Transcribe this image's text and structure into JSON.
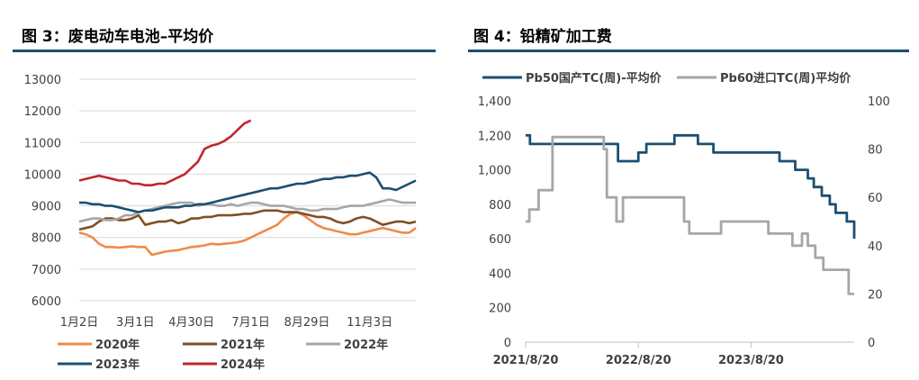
{
  "charts": [
    {
      "title": "图 3：废电动车电池–平均价",
      "chart_data": {
        "type": "line",
        "title": "图 3：废电动车电池–平均价",
        "xlabel": "",
        "ylabel": "",
        "ylim": [
          6000,
          13000
        ],
        "yticks": [
          6000,
          7000,
          8000,
          9000,
          10000,
          11000,
          12000,
          13000
        ],
        "x_unit": "week",
        "x_range": [
          1,
          52
        ],
        "xticks": [
          {
            "x": 1,
            "label": "1月2日"
          },
          {
            "x": 9.5,
            "label": "3月1日"
          },
          {
            "x": 18,
            "label": "4月30日"
          },
          {
            "x": 27,
            "label": "7月1日"
          },
          {
            "x": 35.5,
            "label": "8月29日"
          },
          {
            "x": 45,
            "label": "11月3日"
          }
        ],
        "grid": true,
        "legend_position": "bottom",
        "series": [
          {
            "name": "2020年",
            "color": "#F08A4B",
            "x": [
              1,
              2,
              3,
              4,
              5,
              6,
              7,
              8,
              9,
              10,
              11,
              12,
              13,
              14,
              15,
              16,
              17,
              18,
              19,
              20,
              21,
              22,
              23,
              24,
              25,
              26,
              27,
              28,
              29,
              30,
              31,
              32,
              33,
              34,
              35,
              36,
              37,
              38,
              39,
              40,
              41,
              42,
              43,
              44,
              45,
              46,
              47,
              48,
              49,
              50,
              51,
              52
            ],
            "values": [
              8150,
              8100,
              8000,
              7800,
              7700,
              7700,
              7680,
              7700,
              7720,
              7700,
              7700,
              7450,
              7500,
              7550,
              7580,
              7600,
              7650,
              7700,
              7720,
              7750,
              7800,
              7780,
              7800,
              7820,
              7850,
              7900,
              8000,
              8100,
              8200,
              8300,
              8400,
              8600,
              8750,
              8800,
              8700,
              8550,
              8400,
              8300,
              8250,
              8200,
              8150,
              8100,
              8100,
              8150,
              8200,
              8250,
              8300,
              8250,
              8200,
              8150,
              8150,
              8300
            ]
          },
          {
            "name": "2021年",
            "color": "#7F4F24",
            "x": [
              1,
              2,
              3,
              4,
              5,
              6,
              7,
              8,
              9,
              10,
              11,
              12,
              13,
              14,
              15,
              16,
              17,
              18,
              19,
              20,
              21,
              22,
              23,
              24,
              25,
              26,
              27,
              28,
              29,
              30,
              31,
              32,
              33,
              34,
              35,
              36,
              37,
              38,
              39,
              40,
              41,
              42,
              43,
              44,
              45,
              46,
              47,
              48,
              49,
              50,
              51,
              52
            ],
            "values": [
              8250,
              8300,
              8350,
              8500,
              8600,
              8600,
              8550,
              8550,
              8600,
              8700,
              8400,
              8450,
              8500,
              8500,
              8550,
              8450,
              8500,
              8600,
              8600,
              8650,
              8650,
              8700,
              8700,
              8700,
              8720,
              8750,
              8750,
              8800,
              8850,
              8850,
              8850,
              8800,
              8800,
              8800,
              8750,
              8700,
              8650,
              8650,
              8600,
              8500,
              8450,
              8500,
              8600,
              8650,
              8600,
              8500,
              8400,
              8450,
              8500,
              8500,
              8450,
              8500
            ]
          },
          {
            "name": "2022年",
            "color": "#A6A6A6",
            "x": [
              1,
              2,
              3,
              4,
              5,
              6,
              7,
              8,
              9,
              10,
              11,
              12,
              13,
              14,
              15,
              16,
              17,
              18,
              19,
              20,
              21,
              22,
              23,
              24,
              25,
              26,
              27,
              28,
              29,
              30,
              31,
              32,
              33,
              34,
              35,
              36,
              37,
              38,
              39,
              40,
              41,
              42,
              43,
              44,
              45,
              46,
              47,
              48,
              49,
              50,
              51,
              52
            ],
            "values": [
              8500,
              8550,
              8600,
              8600,
              8550,
              8550,
              8600,
              8700,
              8700,
              8800,
              8850,
              8900,
              8950,
              9000,
              9050,
              9100,
              9100,
              9100,
              9000,
              9050,
              9050,
              9000,
              9000,
              9050,
              9000,
              9050,
              9100,
              9100,
              9050,
              9000,
              9000,
              9000,
              8950,
              8900,
              8900,
              8850,
              8850,
              8900,
              8900,
              8900,
              8950,
              9000,
              9000,
              9000,
              9050,
              9100,
              9150,
              9200,
              9150,
              9100,
              9100,
              9100
            ]
          },
          {
            "name": "2023年",
            "color": "#1B4F72",
            "x": [
              1,
              2,
              3,
              4,
              5,
              6,
              7,
              8,
              9,
              10,
              11,
              12,
              13,
              14,
              15,
              16,
              17,
              18,
              19,
              20,
              21,
              22,
              23,
              24,
              25,
              26,
              27,
              28,
              29,
              30,
              31,
              32,
              33,
              34,
              35,
              36,
              37,
              38,
              39,
              40,
              41,
              42,
              43,
              44,
              45,
              46,
              47,
              48,
              49,
              50,
              51,
              52
            ],
            "values": [
              9100,
              9100,
              9050,
              9050,
              9000,
              9000,
              8950,
              8900,
              8850,
              8800,
              8850,
              8850,
              8900,
              8950,
              8950,
              8950,
              9000,
              9000,
              9050,
              9050,
              9100,
              9150,
              9200,
              9250,
              9300,
              9350,
              9400,
              9450,
              9500,
              9550,
              9550,
              9600,
              9650,
              9700,
              9700,
              9750,
              9800,
              9850,
              9850,
              9900,
              9900,
              9950,
              9950,
              10000,
              10050,
              9900,
              9550,
              9550,
              9500,
              9600,
              9700,
              9800
            ]
          },
          {
            "name": "2024年",
            "color": "#C0262D",
            "x": [
              1,
              2,
              3,
              4,
              5,
              6,
              7,
              8,
              9,
              10,
              11,
              12,
              13,
              14,
              15,
              16,
              17,
              18,
              19,
              20,
              21,
              22,
              23,
              24,
              25,
              26,
              27
            ],
            "values": [
              9800,
              9850,
              9900,
              9950,
              9900,
              9850,
              9800,
              9800,
              9700,
              9700,
              9650,
              9650,
              9700,
              9700,
              9800,
              9900,
              10000,
              10200,
              10400,
              10800,
              10900,
              10950,
              11050,
              11200,
              11400,
              11600,
              11700
            ]
          }
        ]
      }
    },
    {
      "title": "图 4：铅精矿加工费",
      "chart_data": {
        "type": "line",
        "title": "图 4：铅精矿加工费",
        "xlabel": "",
        "ylabel": "",
        "ylim": [
          0,
          1400
        ],
        "yticks": [
          0,
          200,
          400,
          600,
          800,
          1000,
          1200,
          1400
        ],
        "ytick_labels": [
          "0",
          "200",
          "400",
          "600",
          "800",
          "1,000",
          "1,200",
          "1,400"
        ],
        "y2lim": [
          0,
          100
        ],
        "y2ticks": [
          0,
          20,
          40,
          60,
          80,
          100
        ],
        "x_unit": "date",
        "x_range": [
          "2021-08-20",
          "2024-07-19"
        ],
        "xticks": [
          "2021/8/20",
          "2022/8/20",
          "2023/8/20"
        ],
        "grid": false,
        "legend_position": "top",
        "series": [
          {
            "name": "Pb50国产TC(周)-平均价",
            "color": "#1B4F72",
            "axis": "left",
            "x": [
              "2021-08-20",
              "2021-09-03",
              "2021-12-15",
              "2022-03-20",
              "2022-05-20",
              "2022-06-15",
              "2022-07-20",
              "2022-08-01",
              "2022-08-20",
              "2022-09-15",
              "2022-10-01",
              "2022-12-15",
              "2023-02-15",
              "2023-03-01",
              "2023-04-20",
              "2023-08-20",
              "2023-09-20",
              "2023-11-01",
              "2023-11-20",
              "2024-01-10",
              "2024-02-20",
              "2024-03-10",
              "2024-04-05",
              "2024-05-01",
              "2024-05-20",
              "2024-06-25",
              "2024-07-19"
            ],
            "values": [
              1200,
              1150,
              1150,
              1150,
              1150,
              1050,
              1050,
              1050,
              1100,
              1150,
              1150,
              1200,
              1200,
              1150,
              1100,
              1100,
              1100,
              1100,
              1050,
              1000,
              950,
              900,
              850,
              800,
              750,
              700,
              600
            ]
          },
          {
            "name": "Pb60进口TC(周)平均价",
            "color": "#A6A6A6",
            "axis": "right",
            "x": [
              "2021-08-20",
              "2021-09-01",
              "2021-10-01",
              "2021-11-05",
              "2021-11-15",
              "2022-04-15",
              "2022-04-30",
              "2022-05-10",
              "2022-06-10",
              "2022-07-01",
              "2022-12-01",
              "2023-01-15",
              "2023-02-01",
              "2023-03-15",
              "2023-05-15",
              "2023-08-20",
              "2023-10-15",
              "2023-12-15",
              "2024-01-01",
              "2024-02-01",
              "2024-02-20",
              "2024-03-15",
              "2024-04-10",
              "2024-06-01",
              "2024-07-01",
              "2024-07-19"
            ],
            "values": [
              50,
              55,
              63,
              63,
              85,
              85,
              80,
              60,
              50,
              60,
              60,
              50,
              45,
              45,
              50,
              50,
              45,
              45,
              40,
              45,
              40,
              35,
              30,
              30,
              20,
              20
            ]
          }
        ]
      }
    }
  ]
}
